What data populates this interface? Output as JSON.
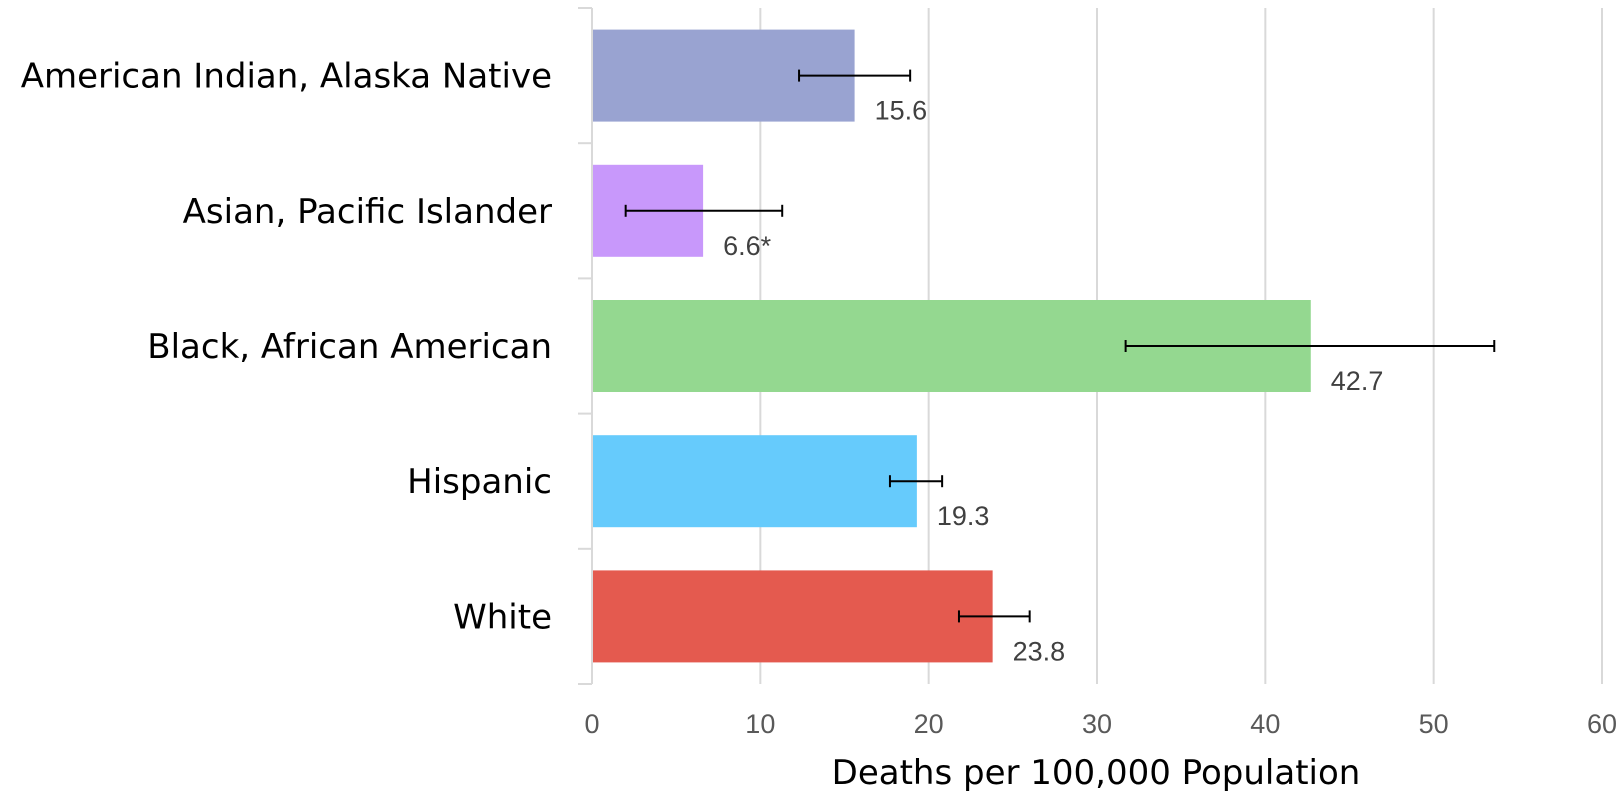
{
  "chart_data": {
    "type": "bar",
    "orientation": "horizontal",
    "categories": [
      "American Indian, Alaska Native",
      "Asian, Pacific Islander",
      "Black, African American",
      "Hispanic",
      "White"
    ],
    "values": [
      15.6,
      6.6,
      42.7,
      19.3,
      23.8
    ],
    "data_labels": [
      "15.6",
      "6.6*",
      "42.7",
      "19.3",
      "23.8"
    ],
    "error_bars": [
      [
        12.3,
        18.9
      ],
      [
        2.0,
        11.3
      ],
      [
        31.7,
        53.6
      ],
      [
        17.7,
        20.8
      ],
      [
        21.8,
        26.0
      ]
    ],
    "colors": [
      "#99a3d1",
      "#c898fb",
      "#94d890",
      "#66cbfc",
      "#e45a4f"
    ],
    "xlabel": "Deaths per 100,000 Population",
    "ylabel": "",
    "xlim": [
      0,
      60
    ],
    "xticks": [
      "0",
      "10",
      "20",
      "30",
      "40",
      "50",
      "60"
    ],
    "grid": "vertical",
    "legend": "none"
  }
}
